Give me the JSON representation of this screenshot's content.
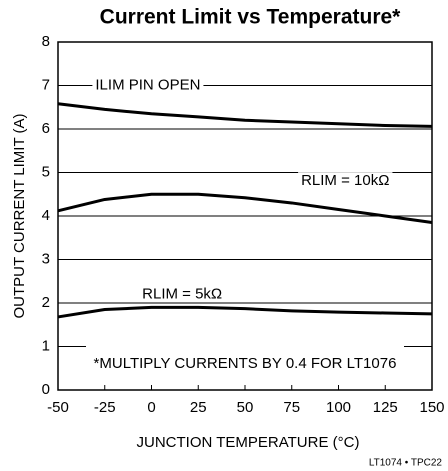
{
  "chart_data": {
    "type": "line",
    "title": "Current Limit vs Temperature*",
    "x_label": "JUNCTION TEMPERATURE (°C)",
    "y_label": "OUTPUT CURRENT LIMIT (A)",
    "x": [
      -50,
      -25,
      0,
      25,
      50,
      75,
      100,
      125,
      150
    ],
    "series": [
      {
        "name": "ILIM PIN OPEN",
        "color": "#000000",
        "values": [
          6.58,
          6.45,
          6.35,
          6.28,
          6.2,
          6.16,
          6.12,
          6.08,
          6.06
        ]
      },
      {
        "name": "RLIM = 10kΩ",
        "color": "#000000",
        "values": [
          4.12,
          4.38,
          4.5,
          4.5,
          4.42,
          4.3,
          4.15,
          4.0,
          3.85
        ]
      },
      {
        "name": "RLIM = 5kΩ",
        "color": "#000000",
        "values": [
          1.68,
          1.85,
          1.9,
          1.9,
          1.87,
          1.82,
          1.79,
          1.77,
          1.75
        ]
      }
    ],
    "annotations": [
      "*MULTIPLY CURRENTS BY 0.4 FOR LT1076",
      "LT1074 • TPC22"
    ],
    "xlim": [
      -50,
      150
    ],
    "xticks": [
      -50,
      -25,
      0,
      25,
      50,
      75,
      100,
      125,
      150
    ],
    "ylim": [
      0,
      8
    ],
    "yticks": [
      0,
      1,
      2,
      3,
      4,
      5,
      6,
      7,
      8
    ],
    "grid": true
  }
}
